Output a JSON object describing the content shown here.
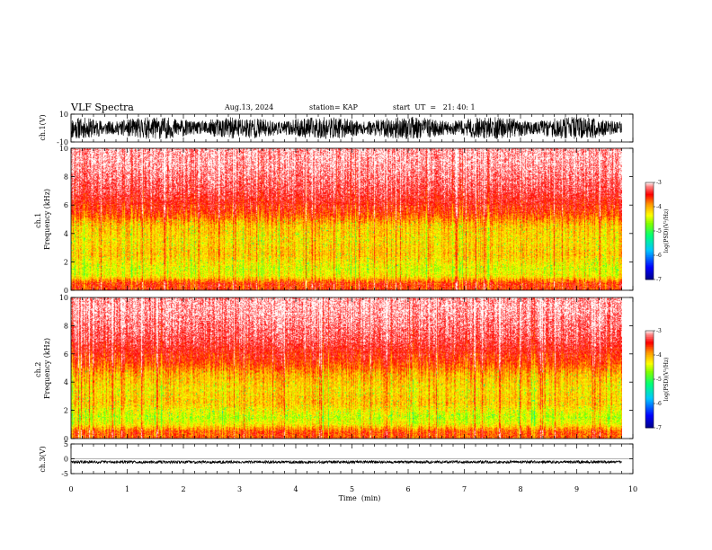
{
  "header": {
    "title": "VLF Spectra",
    "date": "Aug.13, 2024",
    "station": "station= KAP",
    "start": "start  UT  =   21: 40: 1"
  },
  "chart_data": [
    {
      "id": "ch1-waveform",
      "type": "line",
      "ylabel": "ch.1(V)",
      "ylim": [
        -10,
        10
      ],
      "yticks": [
        {
          "value": 10,
          "label": "10"
        },
        {
          "value": -10,
          "label": "-10"
        }
      ],
      "xlim": [
        0,
        10
      ],
      "description_of_values": "dense waveform filling roughly -8 to 8 V",
      "amplitude_range": [
        -8,
        8
      ]
    },
    {
      "id": "ch1-spectrogram",
      "type": "heatmap",
      "ylabel": "ch.1\nFrequency  (kHz)",
      "ylabel_lines": [
        "ch.1",
        "Frequency  (kHz)"
      ],
      "ylim": [
        0,
        10
      ],
      "yticks": [
        {
          "value": 0,
          "label": "0"
        },
        {
          "value": 2,
          "label": "2"
        },
        {
          "value": 4,
          "label": "4"
        },
        {
          "value": 6,
          "label": "6"
        },
        {
          "value": 8,
          "label": "8"
        },
        {
          "value": 10,
          "label": "10"
        }
      ],
      "xlim": [
        0,
        9.8
      ],
      "power_profile_by_frequency_kHz": [
        {
          "f": 0.5,
          "logPSD": -3.6
        },
        {
          "f": 1.0,
          "logPSD": -4.3
        },
        {
          "f": 1.5,
          "logPSD": -4.4
        },
        {
          "f": 2.5,
          "logPSD": -4.1
        },
        {
          "f": 3.5,
          "logPSD": -4.2
        },
        {
          "f": 4.5,
          "logPSD": -4.1
        },
        {
          "f": 5.5,
          "logPSD": -3.6
        },
        {
          "f": 7.0,
          "logPSD": -3.3
        },
        {
          "f": 9.0,
          "logPSD": -3.1
        }
      ],
      "colorbar": {
        "label": "log(PSD)(V²/Hz)",
        "range": [
          -7,
          -3
        ],
        "ticks": [
          {
            "value": -3,
            "label": "-3"
          },
          {
            "value": -4,
            "label": "-4"
          },
          {
            "value": -5,
            "label": "-5"
          },
          {
            "value": -6,
            "label": "-6"
          },
          {
            "value": -7,
            "label": "-7"
          }
        ]
      }
    },
    {
      "id": "ch2-spectrogram",
      "type": "heatmap",
      "ylabel": "ch.2\nFrequency  (kHz)",
      "ylabel_lines": [
        "ch.2",
        "Frequency  (kHz)"
      ],
      "ylim": [
        0,
        10
      ],
      "yticks": [
        {
          "value": 0,
          "label": "0"
        },
        {
          "value": 2,
          "label": "2"
        },
        {
          "value": 4,
          "label": "4"
        },
        {
          "value": 6,
          "label": "6"
        },
        {
          "value": 8,
          "label": "8"
        },
        {
          "value": 10,
          "label": "10"
        }
      ],
      "xlim": [
        0,
        9.8
      ],
      "power_profile_by_frequency_kHz": [
        {
          "f": 0.5,
          "logPSD": -3.7
        },
        {
          "f": 1.0,
          "logPSD": -4.3
        },
        {
          "f": 1.5,
          "logPSD": -4.5
        },
        {
          "f": 2.5,
          "logPSD": -4.1
        },
        {
          "f": 3.5,
          "logPSD": -4.2
        },
        {
          "f": 4.5,
          "logPSD": -4.0
        },
        {
          "f": 5.5,
          "logPSD": -3.6
        },
        {
          "f": 7.0,
          "logPSD": -3.3
        },
        {
          "f": 9.0,
          "logPSD": -3.1
        }
      ],
      "colorbar": {
        "label": "log(PSD)(V²/Hz)",
        "range": [
          -7,
          -3
        ],
        "ticks": [
          {
            "value": -3,
            "label": "-3"
          },
          {
            "value": -4,
            "label": "-4"
          },
          {
            "value": -5,
            "label": "-5"
          },
          {
            "value": -6,
            "label": "-6"
          },
          {
            "value": -7,
            "label": "-7"
          }
        ]
      }
    },
    {
      "id": "ch3-waveform",
      "type": "line",
      "ylabel": "ch.3(V)",
      "ylim": [
        -5,
        5
      ],
      "yticks": [
        {
          "value": 5,
          "label": "5"
        },
        {
          "value": 0,
          "label": "0"
        },
        {
          "value": -5,
          "label": "-5"
        }
      ],
      "xlim": [
        0,
        10
      ],
      "xlabel": "Time  (min)",
      "xticks": [
        {
          "value": 0,
          "label": "0"
        },
        {
          "value": 1,
          "label": "1"
        },
        {
          "value": 2,
          "label": "2"
        },
        {
          "value": 3,
          "label": "3"
        },
        {
          "value": 4,
          "label": "4"
        },
        {
          "value": 5,
          "label": "5"
        },
        {
          "value": 6,
          "label": "6"
        },
        {
          "value": 7,
          "label": "7"
        },
        {
          "value": 8,
          "label": "8"
        },
        {
          "value": 9,
          "label": "9"
        },
        {
          "value": 10,
          "label": "10"
        }
      ],
      "description_of_values": "narrow band near -1 V",
      "amplitude_range": [
        -1.6,
        -0.6
      ]
    }
  ],
  "colors": {
    "axis": "#000000",
    "colormap": [
      "#00008b",
      "#0000ff",
      "#00ffff",
      "#00ff00",
      "#ffff00",
      "#ff0000",
      "#ffffff"
    ]
  }
}
